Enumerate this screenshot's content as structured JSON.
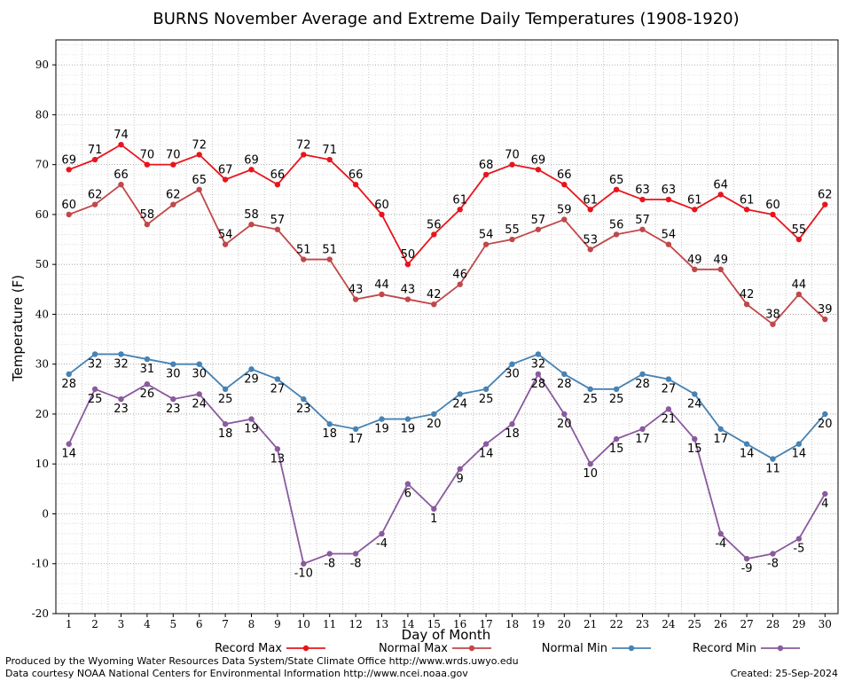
{
  "chart_data": {
    "type": "line",
    "title": "BURNS November Average and Extreme Daily Temperatures (1908-1920)",
    "xlabel": "Day of Month",
    "ylabel": "Temperature (F)",
    "ylim": [
      -20,
      95
    ],
    "yticks": [
      -20,
      -10,
      0,
      10,
      20,
      30,
      40,
      50,
      60,
      70,
      80,
      90
    ],
    "grid": true,
    "legend_position": "bottom",
    "x": [
      1,
      2,
      3,
      4,
      5,
      6,
      7,
      8,
      9,
      10,
      11,
      12,
      13,
      14,
      15,
      16,
      17,
      18,
      19,
      20,
      21,
      22,
      23,
      24,
      25,
      26,
      27,
      28,
      29,
      30
    ],
    "series": [
      {
        "name": "Record Max",
        "color": "#e8141c",
        "values": [
          69,
          71,
          74,
          70,
          70,
          72,
          67,
          69,
          66,
          72,
          71,
          66,
          60,
          50,
          56,
          61,
          68,
          70,
          69,
          66,
          61,
          65,
          63,
          63,
          61,
          64,
          61,
          60,
          55,
          62
        ]
      },
      {
        "name": "Normal Max",
        "color": "#c0474a",
        "values": [
          60,
          62,
          66,
          58,
          62,
          65,
          54,
          58,
          57,
          51,
          51,
          43,
          44,
          43,
          42,
          46,
          54,
          55,
          57,
          59,
          53,
          56,
          57,
          54,
          49,
          49,
          42,
          38,
          44,
          39
        ]
      },
      {
        "name": "Normal Min",
        "color": "#4682b4",
        "values": [
          28,
          32,
          32,
          31,
          30,
          30,
          25,
          29,
          27,
          23,
          18,
          17,
          19,
          19,
          20,
          24,
          25,
          30,
          32,
          28,
          25,
          25,
          28,
          27,
          24,
          17,
          14,
          11,
          14,
          20
        ]
      },
      {
        "name": "Record Min",
        "color": "#8a5a9e",
        "values": [
          14,
          25,
          23,
          26,
          23,
          24,
          18,
          19,
          13,
          -10,
          -8,
          -8,
          -4,
          6,
          1,
          9,
          14,
          18,
          28,
          20,
          10,
          15,
          17,
          21,
          15,
          -4,
          -9,
          -8,
          -5,
          4
        ]
      }
    ]
  },
  "footer": {
    "produced_by": "Produced by the Wyoming Water Resources Data System/State Climate Office http://www.wrds.uwyo.edu",
    "courtesy": "Data courtesy NOAA National Centers for Environmental Information http://www.ncei.noaa.gov",
    "created": "Created: 25-Sep-2024"
  }
}
